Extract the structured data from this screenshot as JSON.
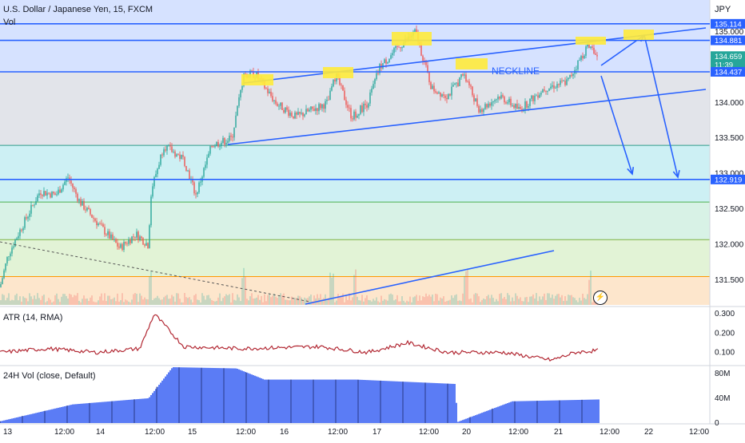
{
  "header": {
    "symbol_line": "U.S. Dollar / Japanese Yen, 15, FXCM",
    "vol_label": "Vol",
    "currency": "JPY"
  },
  "colors": {
    "line": "#2962ff",
    "highlight": "#ffeb3b",
    "up": "#26a69a",
    "down": "#ef5350",
    "atr": "#b22833",
    "vol24": "#5b7cf5",
    "last_price": "#26a69a"
  },
  "annotations": {
    "neckline": "NECKLINE"
  },
  "chart_data": [
    {
      "type": "line",
      "title": "U.S. Dollar / Japanese Yen, 15, FXCM",
      "ylim": [
        131.15,
        135.45
      ],
      "y_ticks": [
        "135.000",
        "134.500",
        "134.000",
        "133.500",
        "133.000",
        "132.500",
        "132.000",
        "131.500"
      ],
      "x_ticks": [
        "13",
        "12:00",
        "14",
        "12:00",
        "15",
        "12:00",
        "16",
        "12:00",
        "17",
        "12:00",
        "20",
        "12:00",
        "21",
        "12:00",
        "22",
        "12:00"
      ],
      "price_tags": [
        {
          "label": "135.114",
          "value": 135.114
        },
        {
          "label": "134.881",
          "value": 134.881
        },
        {
          "label": "134.659",
          "value": 134.659,
          "sub": "11:39"
        },
        {
          "label": "134.437",
          "value": 134.437
        },
        {
          "label": "132.919",
          "value": 132.919
        }
      ],
      "horizontal_lines": [
        135.114,
        134.881,
        134.437,
        132.919
      ],
      "zone_lines": [
        133.4,
        132.6,
        132.07,
        131.55
      ],
      "approx_close": [
        [
          0,
          131.4
        ],
        [
          10,
          131.85
        ],
        [
          25,
          132.2
        ],
        [
          50,
          132.75
        ],
        [
          70,
          132.7
        ],
        [
          85,
          132.95
        ],
        [
          100,
          132.6
        ],
        [
          130,
          132.2
        ],
        [
          150,
          131.95
        ],
        [
          170,
          132.15
        ],
        [
          185,
          132.0
        ],
        [
          190,
          132.8
        ],
        [
          205,
          133.4
        ],
        [
          230,
          133.2
        ],
        [
          245,
          132.7
        ],
        [
          265,
          133.4
        ],
        [
          290,
          133.5
        ],
        [
          305,
          134.4
        ],
        [
          320,
          134.4
        ],
        [
          345,
          134.0
        ],
        [
          370,
          133.8
        ],
        [
          390,
          133.9
        ],
        [
          410,
          134.0
        ],
        [
          420,
          134.4
        ],
        [
          440,
          133.8
        ],
        [
          460,
          134.0
        ],
        [
          475,
          134.5
        ],
        [
          500,
          134.8
        ],
        [
          520,
          135.0
        ],
        [
          540,
          134.2
        ],
        [
          560,
          134.1
        ],
        [
          580,
          134.4
        ],
        [
          600,
          133.9
        ],
        [
          625,
          134.1
        ],
        [
          650,
          133.9
        ],
        [
          680,
          134.2
        ],
        [
          710,
          134.3
        ],
        [
          735,
          134.8
        ],
        [
          748,
          134.65
        ]
      ]
    },
    {
      "type": "line",
      "title": "ATR (14, RMA)",
      "ylim": [
        0.04,
        0.33
      ],
      "y_ticks": [
        "0.300",
        "0.200",
        "0.100"
      ],
      "approx_values": [
        [
          0,
          0.1
        ],
        [
          60,
          0.12
        ],
        [
          120,
          0.1
        ],
        [
          175,
          0.12
        ],
        [
          193,
          0.3
        ],
        [
          230,
          0.13
        ],
        [
          300,
          0.12
        ],
        [
          400,
          0.13
        ],
        [
          460,
          0.1
        ],
        [
          510,
          0.15
        ],
        [
          560,
          0.1
        ],
        [
          630,
          0.1
        ],
        [
          690,
          0.06
        ],
        [
          720,
          0.1
        ],
        [
          748,
          0.11
        ]
      ]
    },
    {
      "type": "area",
      "title": "24H Vol (close, Default)",
      "ylim": [
        0,
        90
      ],
      "y_ticks": [
        "80M",
        "40M",
        "0"
      ],
      "unit": "M",
      "approx_values": [
        [
          0,
          3
        ],
        [
          90,
          30
        ],
        [
          185,
          40
        ],
        [
          215,
          90
        ],
        [
          295,
          88
        ],
        [
          330,
          70
        ],
        [
          445,
          70
        ],
        [
          568,
          63
        ],
        [
          572,
          2
        ],
        [
          640,
          35
        ],
        [
          748,
          38
        ]
      ]
    }
  ]
}
